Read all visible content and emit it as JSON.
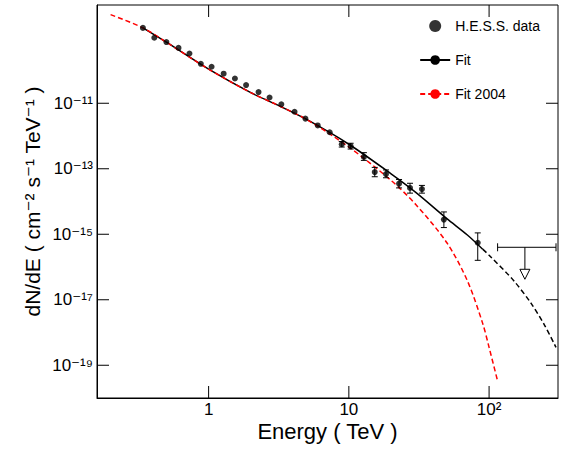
{
  "chart_data": {
    "type": "scatter",
    "xlabel": "Energy ( TeV )",
    "ylabel": "dN/dE ( cm⁻² s⁻¹ TeV⁻¹ )",
    "log": true,
    "grid": false,
    "legend": "top-right",
    "xlim": [
      0.16,
      310
    ],
    "ylim": [
      1e-20,
      1e-08
    ],
    "xticks": [
      1,
      10,
      {
        "value": 100,
        "label": "10²"
      }
    ],
    "yticks": [
      {
        "value": 1e-19,
        "label": "10⁻¹⁹"
      },
      {
        "value": 1e-17,
        "label": "10⁻¹⁷"
      },
      {
        "value": 1e-15,
        "label": "10⁻¹⁵"
      },
      {
        "value": 1e-13,
        "label": "10⁻¹³"
      },
      {
        "value": 1e-11,
        "label": "10⁻¹¹"
      }
    ],
    "series": [
      {
        "name": "H.E.S.S. data",
        "type": "scatter",
        "color": "#000000",
        "marker": "circle",
        "x": [
          0.34,
          0.41,
          0.5,
          0.61,
          0.73,
          0.88,
          1.05,
          1.28,
          1.54,
          1.85,
          2.27,
          2.72,
          3.3,
          4.1,
          4.9,
          6.0,
          7.3,
          8.9,
          10.3,
          12.8,
          15.3,
          18.4,
          22.8,
          27.3,
          33.2,
          47.6,
          83
        ],
        "values": [
          2e-09,
          1e-09,
          7.4e-10,
          4.9e-10,
          3.3e-10,
          1.6e-10,
          1.3e-10,
          8e-11,
          5.7e-11,
          3.6e-11,
          2.2e-11,
          1.5e-11,
          9.3e-12,
          5.5e-12,
          3.4e-12,
          2.1e-12,
          1.3e-12,
          5.6e-13,
          4.9e-13,
          2.3e-13,
          7.9e-14,
          6.9e-14,
          3.5e-14,
          2.6e-14,
          2.4e-14,
          2.8e-15,
          5.5e-16
        ],
        "error_low": [
          null,
          null,
          null,
          null,
          null,
          null,
          null,
          null,
          null,
          null,
          null,
          null,
          null,
          null,
          null,
          null,
          null,
          4.6e-13,
          4e-13,
          1.8e-13,
          5.7e-14,
          5.3e-14,
          2.6e-14,
          1.8e-14,
          1.8e-14,
          1.6e-15,
          1.6e-16
        ],
        "error_high": [
          null,
          null,
          null,
          null,
          null,
          null,
          null,
          null,
          null,
          null,
          null,
          null,
          null,
          null,
          null,
          null,
          null,
          6.8e-13,
          6e-13,
          3.1e-13,
          1.1e-13,
          9.2e-14,
          4.7e-14,
          3.6e-14,
          3.1e-14,
          4.8e-15,
          1.1e-15
        ]
      },
      {
        "name": "Fit",
        "type": "line",
        "color": "#000000",
        "line_style": "solid",
        "x": [
          0.34,
          0.5,
          1,
          2,
          3,
          5,
          10,
          20,
          30,
          50,
          70,
          90
        ],
        "values": [
          2e-09,
          7.3e-10,
          1.1e-10,
          2.1e-11,
          9.4e-12,
          3.2e-12,
          5.6e-13,
          7e-14,
          1.9e-14,
          3e-15,
          9.5e-16,
          3.5e-16
        ]
      },
      {
        "type": "line",
        "color": "#000000",
        "line_style": "dashed",
        "x": [
          90,
          100,
          150,
          200,
          250,
          300
        ],
        "values": [
          3.5e-16,
          2.3e-16,
          3.8e-17,
          7.6e-18,
          1.6e-18,
          3.5e-19
        ]
      },
      {
        "name": "Fit 2004",
        "type": "line",
        "color": "#ff0000",
        "line_style": "dashed",
        "x": [
          0.2,
          0.34,
          0.5,
          1,
          2,
          3,
          5,
          10,
          20,
          30,
          50,
          70,
          90,
          100,
          115
        ],
        "values": [
          5.1e-09,
          2e-09,
          7.3e-10,
          1.1e-10,
          2.1e-11,
          9.4e-12,
          3.2e-12,
          4.6e-13,
          4.4e-14,
          8.1e-15,
          5.5e-16,
          3.8e-17,
          1.9e-18,
          3.5e-19,
          3.3e-20
        ]
      },
      {
        "type": "upper_limit",
        "color": "#000000",
        "x": [
          180
        ],
        "xmin": [
          115
        ],
        "xmax": [
          300
        ],
        "values": [
          4e-16
        ]
      }
    ]
  }
}
